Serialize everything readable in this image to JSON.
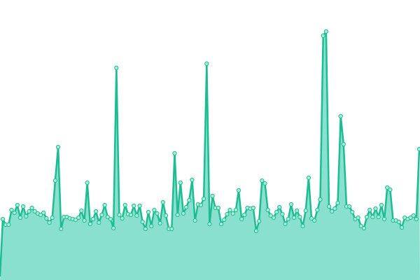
{
  "chart_data": {
    "type": "area",
    "values": [
      87,
      79,
      79,
      100,
      96,
      107,
      89,
      105,
      91,
      98,
      103,
      98,
      95,
      93,
      96,
      88,
      82,
      89,
      142,
      190,
      73,
      90,
      90,
      88,
      87,
      86,
      89,
      99,
      85,
      139,
      80,
      87,
      98,
      82,
      93,
      107,
      90,
      87,
      74,
      303,
      93,
      88,
      107,
      94,
      93,
      106,
      92,
      106,
      83,
      73,
      97,
      77,
      100,
      95,
      81,
      111,
      92,
      73,
      73,
      181,
      93,
      139,
      95,
      104,
      114,
      143,
      85,
      108,
      107,
      116,
      309,
      80,
      120,
      103,
      103,
      80,
      86,
      94,
      100,
      95,
      100,
      128,
      87,
      93,
      103,
      102,
      103,
      70,
      84,
      142,
      138,
      100,
      92,
      89,
      97,
      104,
      94,
      80,
      87,
      108,
      89,
      99,
      90,
      77,
      99,
      146,
      88,
      85,
      100,
      115,
      349,
      355,
      105,
      98,
      102,
      110,
      234,
      194,
      105,
      105,
      97,
      87,
      89,
      77,
      74,
      90,
      100,
      90,
      102,
      90,
      107,
      87,
      132,
      129,
      85,
      85,
      83,
      75,
      89,
      87,
      89,
      92,
      87,
      187
    ],
    "ylim": [
      0,
      400
    ],
    "color": "#1dbd93",
    "fill": "#8ae0cf",
    "marker_fill": "#a9ecd9"
  }
}
